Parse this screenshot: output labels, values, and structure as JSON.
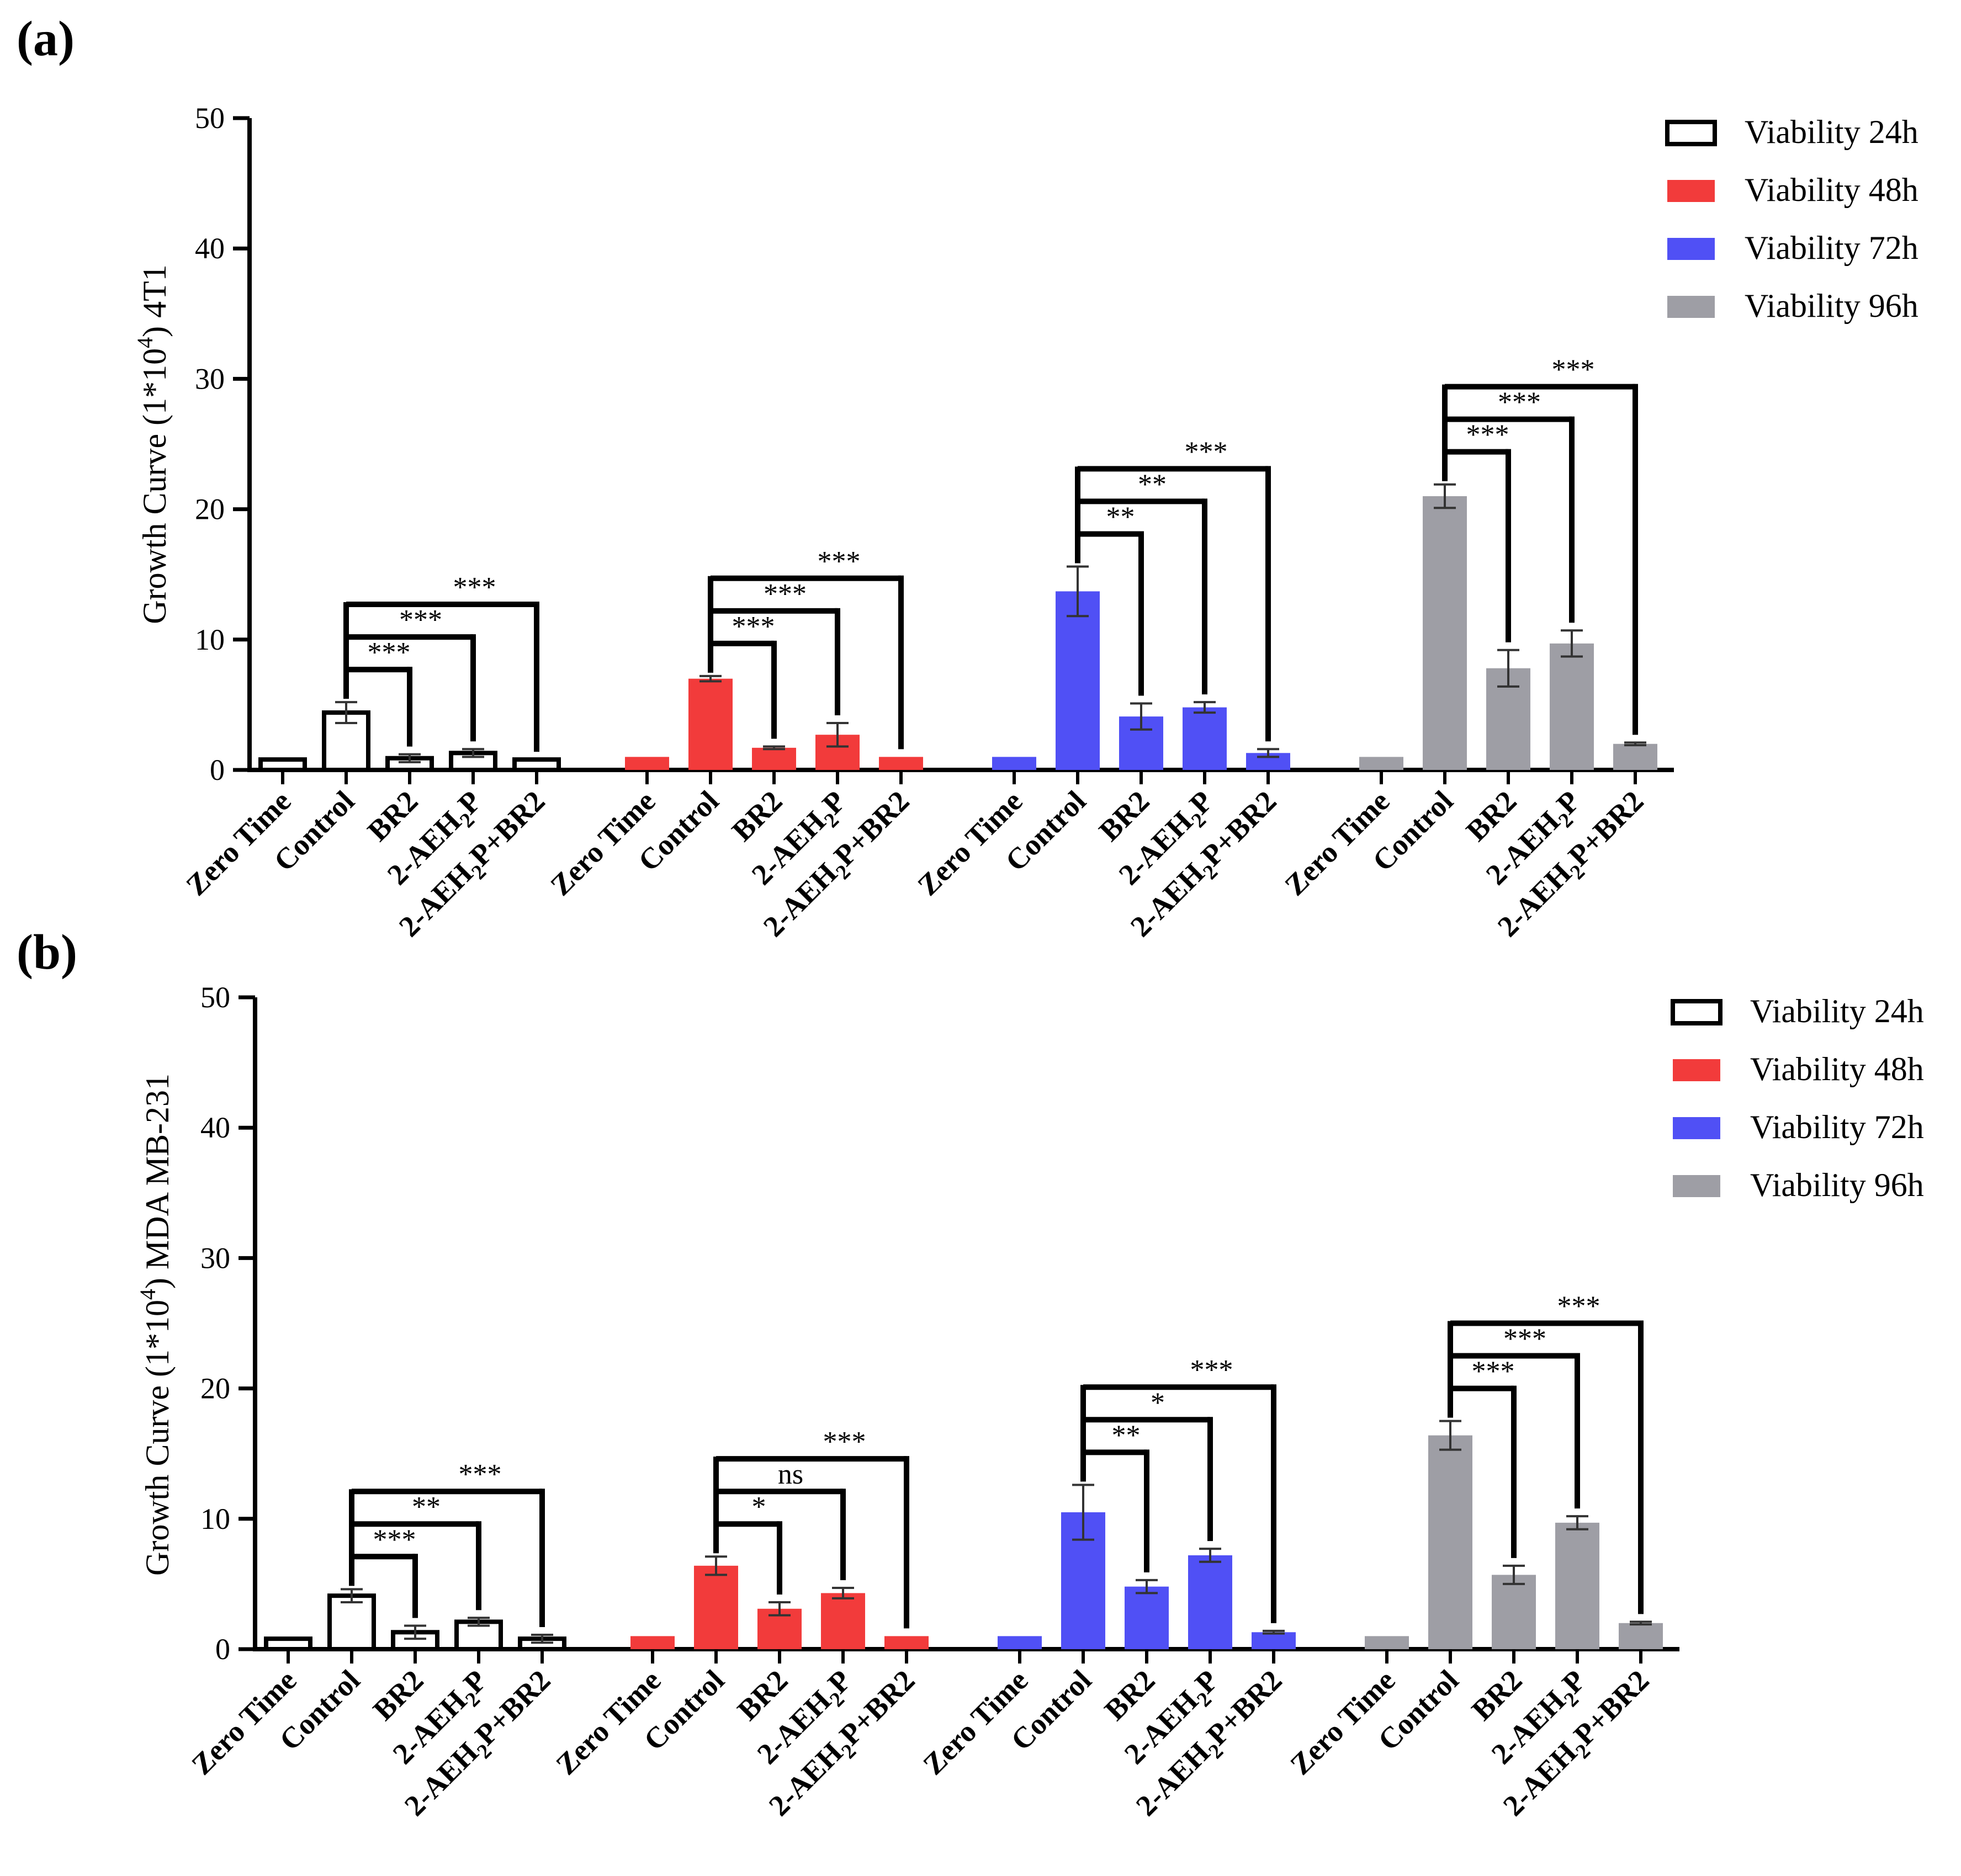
{
  "colors": {
    "viability_24h": "#ffffff",
    "viability_48h": "#f23b3b",
    "viability_72h": "#5050f5",
    "viability_96h": "#9e9ea5",
    "axis": "#000000"
  },
  "chart_data": [
    {
      "panel": "(a)",
      "type": "bar",
      "ylabel_prefix": "Growth Curve (1*10",
      "ylabel_sup": "4",
      "ylabel_suffix": ") 4T1",
      "ylim": [
        0,
        50
      ],
      "yticks": [
        "0",
        "10",
        "20",
        "30",
        "40",
        "50"
      ],
      "legend": [
        "Viability 24h",
        "Viability 48h",
        "Viability 72h",
        "Viability 96h"
      ],
      "categories": [
        "Zero Time",
        "Control",
        "BR2",
        "2-AEH2P",
        "2-AEH2P+BR2"
      ],
      "category_labels": [
        {
          "text": "Zero Time"
        },
        {
          "text": "Control"
        },
        {
          "text": "BR2"
        },
        {
          "text": "2-AEH",
          "sub": "2",
          "tail": "P"
        },
        {
          "text": "2-AEH",
          "sub": "2",
          "tail": "P+BR2"
        }
      ],
      "series": [
        {
          "name": "Viability 24h",
          "values": [
            0.8,
            4.4,
            0.9,
            1.3,
            0.8
          ],
          "errors": [
            0.0,
            0.8,
            0.3,
            0.3,
            0.0
          ],
          "significance": [
            "***",
            "***",
            "***"
          ]
        },
        {
          "name": "Viability 48h",
          "values": [
            1.0,
            7.0,
            1.7,
            2.7,
            1.0
          ],
          "errors": [
            0.0,
            0.2,
            0.1,
            0.9,
            0.0
          ],
          "significance": [
            "***",
            "***",
            "***"
          ]
        },
        {
          "name": "Viability 72h",
          "values": [
            1.0,
            13.7,
            4.1,
            4.8,
            1.3
          ],
          "errors": [
            0.0,
            1.9,
            1.0,
            0.4,
            0.3
          ],
          "significance": [
            "**",
            "**",
            "***"
          ]
        },
        {
          "name": "Viability 96h",
          "values": [
            1.0,
            21.0,
            7.8,
            9.7,
            2.0
          ],
          "errors": [
            0.0,
            0.9,
            1.4,
            1.0,
            0.1
          ],
          "significance": [
            "***",
            "***",
            "***"
          ]
        }
      ]
    },
    {
      "panel": "(b)",
      "type": "bar",
      "ylabel_prefix": "Growth Curve (1*10",
      "ylabel_sup": "4",
      "ylabel_suffix": ") MDA MB-231",
      "ylim": [
        0,
        50
      ],
      "yticks": [
        "0",
        "10",
        "20",
        "30",
        "40",
        "50"
      ],
      "legend": [
        "Viability 24h",
        "Viability 48h",
        "Viability 72h",
        "Viability 96h"
      ],
      "categories": [
        "Zero Time",
        "Control",
        "BR2",
        "2-AEH2P",
        "2-AEH2P+BR2"
      ],
      "category_labels": [
        {
          "text": "Zero Time"
        },
        {
          "text": "Control"
        },
        {
          "text": "BR2"
        },
        {
          "text": "2-AEH",
          "sub": "2",
          "tail": "P"
        },
        {
          "text": "2-AEH",
          "sub": "2",
          "tail": "P+BR2"
        }
      ],
      "series": [
        {
          "name": "Viability 24h",
          "values": [
            0.8,
            4.1,
            1.3,
            2.1,
            0.8
          ],
          "errors": [
            0.0,
            0.5,
            0.5,
            0.3,
            0.3
          ],
          "significance": [
            "***",
            "**",
            "***"
          ]
        },
        {
          "name": "Viability 48h",
          "values": [
            1.0,
            6.4,
            3.1,
            4.3,
            1.0
          ],
          "errors": [
            0.0,
            0.7,
            0.5,
            0.4,
            0.0
          ],
          "significance": [
            "*",
            "ns",
            "***"
          ]
        },
        {
          "name": "Viability 72h",
          "values": [
            1.0,
            10.5,
            4.8,
            7.2,
            1.3
          ],
          "errors": [
            0.0,
            2.1,
            0.5,
            0.5,
            0.1
          ],
          "significance": [
            "**",
            "*",
            "***"
          ]
        },
        {
          "name": "Viability 96h",
          "values": [
            1.0,
            16.4,
            5.7,
            9.7,
            2.0
          ],
          "errors": [
            0.0,
            1.1,
            0.7,
            0.5,
            0.1
          ],
          "significance": [
            "***",
            "***",
            "***"
          ]
        }
      ]
    }
  ]
}
